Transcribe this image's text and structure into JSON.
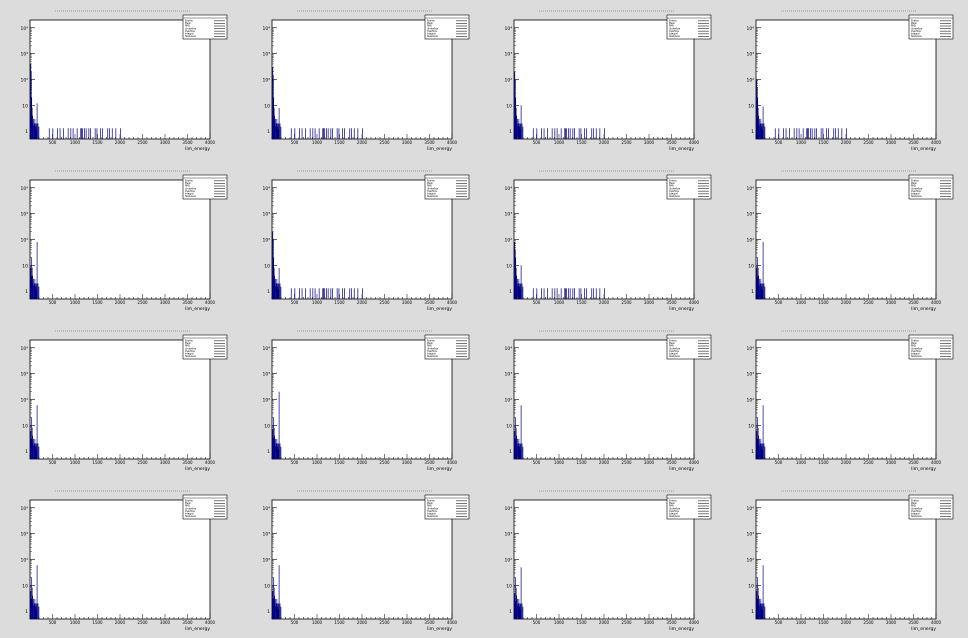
{
  "panel_title": "",
  "colors": {
    "background": "#dcdcdc",
    "frame": "#ffffff",
    "histogram": "#000080",
    "axis": "#000000"
  },
  "x_ticks": [
    "500",
    "1000",
    "1500",
    "2000",
    "2500",
    "3000",
    "3500",
    "4000"
  ],
  "y_ticks": [
    "1",
    "10",
    "10²",
    "10³",
    "10⁴"
  ],
  "stats_labels": [
    "Entries",
    "Mean",
    "RMS",
    "Underflow",
    "Overflow",
    "Integral",
    "Skewness"
  ],
  "chart_data": [
    {
      "type": "bar",
      "title": "",
      "xlabel": "lim_energy",
      "ylabel": "",
      "xlim": [
        0,
        4000
      ],
      "ylim": [
        0.5,
        20000
      ],
      "log_y": true,
      "stats_position": "top-right",
      "main_peak_height": 400,
      "secondary_peak_height": 12,
      "tail_bins": [
        210,
        250,
        300,
        330,
        370,
        420,
        450,
        475,
        520,
        560,
        570,
        580,
        600,
        620,
        650,
        670,
        720,
        740,
        780,
        800,
        860,
        880,
        910,
        950,
        1000
      ]
    },
    {
      "type": "bar",
      "title": "",
      "xlabel": "lim_energy",
      "ylabel": "",
      "xlim": [
        0,
        4000
      ],
      "ylim": [
        0.5,
        20000
      ],
      "log_y": true,
      "stats_position": "top-right",
      "main_peak_height": 300,
      "secondary_peak_height": 8,
      "tail_bins": [
        210,
        250,
        300,
        330,
        370,
        420,
        450,
        475,
        520,
        560,
        570,
        580,
        600,
        620,
        650,
        670,
        720,
        740,
        780,
        800,
        860,
        880,
        910,
        950,
        1000
      ]
    },
    {
      "type": "bar",
      "title": "",
      "xlabel": "lim_energy",
      "ylabel": "",
      "xlim": [
        0,
        4000
      ],
      "ylim": [
        0.5,
        20000
      ],
      "log_y": true,
      "stats_position": "top-right",
      "main_peak_height": 200,
      "secondary_peak_height": 10,
      "tail_bins": [
        210,
        250,
        300,
        330,
        370,
        420,
        450,
        475,
        520,
        560,
        570,
        580,
        600,
        620,
        650,
        670,
        720,
        740,
        780,
        800,
        860,
        880,
        910,
        950,
        1000
      ]
    },
    {
      "type": "bar",
      "title": "",
      "xlabel": "lim_energy",
      "ylabel": "",
      "xlim": [
        0,
        4000
      ],
      "ylim": [
        0.5,
        20000
      ],
      "log_y": true,
      "stats_position": "top-right",
      "main_peak_height": 100,
      "secondary_peak_height": 9,
      "tail_bins": [
        210,
        250,
        300,
        330,
        370,
        420,
        450,
        475,
        520,
        560,
        570,
        580,
        600,
        620,
        650,
        670,
        720,
        740,
        780,
        800,
        860,
        880,
        910,
        950,
        1000
      ]
    },
    {
      "type": "bar",
      "title": "",
      "xlabel": "lim_energy",
      "ylabel": "",
      "xlim": [
        0,
        4000
      ],
      "ylim": [
        0.5,
        20000
      ],
      "log_y": true,
      "stats_position": "top-right",
      "main_peak_height": 8,
      "secondary_peak_height": 80,
      "tail_bins": []
    },
    {
      "type": "bar",
      "title": "",
      "xlabel": "lim_energy",
      "ylabel": "",
      "xlim": [
        0,
        4000
      ],
      "ylim": [
        0.5,
        20000
      ],
      "log_y": true,
      "stats_position": "top-right",
      "main_peak_height": 200,
      "secondary_peak_height": 8,
      "tail_bins": [
        210,
        250,
        300,
        330,
        370,
        420,
        450,
        475,
        520,
        560,
        570,
        580,
        600,
        620,
        650,
        670,
        720,
        740,
        780,
        800,
        860,
        880,
        910,
        950,
        1000
      ]
    },
    {
      "type": "bar",
      "title": "",
      "xlabel": "lim_energy",
      "ylabel": "",
      "xlim": [
        0,
        4000
      ],
      "ylim": [
        0.5,
        20000
      ],
      "log_y": true,
      "stats_position": "top-right",
      "main_peak_height": 80,
      "secondary_peak_height": 10,
      "tail_bins": [
        210,
        250,
        300,
        330,
        370,
        420,
        450,
        475,
        520,
        560,
        570,
        580,
        600,
        620,
        650,
        670,
        720,
        740,
        780,
        800,
        860,
        880,
        910,
        950,
        1000
      ]
    },
    {
      "type": "bar",
      "title": "",
      "xlabel": "lim_energy",
      "ylabel": "",
      "xlim": [
        0,
        4000
      ],
      "ylim": [
        0.5,
        20000
      ],
      "log_y": true,
      "stats_position": "top-right",
      "main_peak_height": 8,
      "secondary_peak_height": 80,
      "tail_bins": []
    },
    {
      "type": "bar",
      "title": "",
      "xlabel": "lim_energy",
      "ylabel": "",
      "xlim": [
        0,
        4000
      ],
      "ylim": [
        0.5,
        20000
      ],
      "log_y": true,
      "stats_position": "top-right",
      "main_peak_height": 6,
      "secondary_peak_height": 60,
      "tail_bins": []
    },
    {
      "type": "bar",
      "title": "",
      "xlabel": "lim_energy",
      "ylabel": "",
      "xlim": [
        0,
        4000
      ],
      "ylim": [
        0.5,
        20000
      ],
      "log_y": true,
      "stats_position": "top-right",
      "main_peak_height": 7,
      "secondary_peak_height": 200,
      "tail_bins": []
    },
    {
      "type": "bar",
      "title": "",
      "xlabel": "lim_energy",
      "ylabel": "",
      "xlim": [
        0,
        4000
      ],
      "ylim": [
        0.5,
        20000
      ],
      "log_y": true,
      "stats_position": "top-right",
      "main_peak_height": 6,
      "secondary_peak_height": 60,
      "tail_bins": []
    },
    {
      "type": "bar",
      "title": "",
      "xlabel": "lim_energy",
      "ylabel": "",
      "xlim": [
        0,
        4000
      ],
      "ylim": [
        0.5,
        20000
      ],
      "log_y": true,
      "stats_position": "top-right",
      "main_peak_height": 6,
      "secondary_peak_height": 60,
      "tail_bins": []
    },
    {
      "type": "bar",
      "title": "",
      "xlabel": "lim_energy",
      "ylabel": "",
      "xlim": [
        0,
        4000
      ],
      "ylim": [
        0.5,
        20000
      ],
      "log_y": true,
      "stats_position": "top-right",
      "main_peak_height": 6,
      "secondary_peak_height": 60,
      "tail_bins": []
    },
    {
      "type": "bar",
      "title": "",
      "xlabel": "lim_energy",
      "ylabel": "",
      "xlim": [
        0,
        4000
      ],
      "ylim": [
        0.5,
        20000
      ],
      "log_y": true,
      "stats_position": "top-right",
      "main_peak_height": 6,
      "secondary_peak_height": 60,
      "tail_bins": []
    },
    {
      "type": "bar",
      "title": "",
      "xlabel": "lim_energy",
      "ylabel": "",
      "xlim": [
        0,
        4000
      ],
      "ylim": [
        0.5,
        20000
      ],
      "log_y": true,
      "stats_position": "top-right",
      "main_peak_height": 5,
      "secondary_peak_height": 50,
      "tail_bins": []
    },
    {
      "type": "bar",
      "title": "",
      "xlabel": "lim_energy",
      "ylabel": "",
      "xlim": [
        0,
        4000
      ],
      "ylim": [
        0.5,
        20000
      ],
      "log_y": true,
      "stats_position": "top-right",
      "main_peak_height": 6,
      "secondary_peak_height": 60,
      "tail_bins": []
    }
  ]
}
